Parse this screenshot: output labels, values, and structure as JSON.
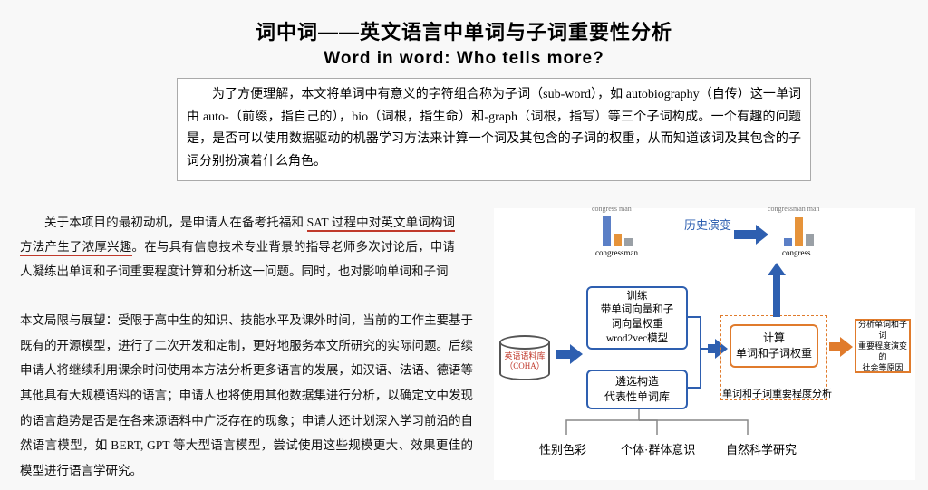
{
  "title": {
    "cn": "词中词——英文语言中单词与子词重要性分析",
    "en": "Word in word: Who tells more?"
  },
  "intro": {
    "text": "为了方便理解，本文将单词中有意义的字符组合称为子词（sub-word），如 autobiography（自传）这一单词由 auto-（前缀，指自己的），bio（词根，指生命）和-graph（词根，指写）等三个子词构成。一个有趣的问题是，是否可以使用数据驱动的机器学习方法来计算一个词及其包含的子词的权重，从而知道该词及其包含的子词分别扮演着什么角色。"
  },
  "mid": {
    "pre": "关于本项目的最初动机，是申请人在备考托福和 ",
    "underlined": "SAT 过程中对英文单词构词方法产生了浓厚兴趣",
    "post": "。在与具有信息技术专业背景的指导老师多次讨论后，申请人凝练出单词和子词重要程度计算和分析这一问题。同时，也对影响单词和子词"
  },
  "bottom": {
    "text": "本文局限与展望：受限于高中生的知识、技能水平及课外时间，当前的工作主要基于既有的开源模型，进行了二次开发和定制，更好地服务本文所研究的实际问题。后续申请人将继续利用课余时间使用本方法分析更多语言的发展，如汉语、法语、德语等其他具有大规模语料的语言；申请人也将使用其他数据集进行分析，以确定文中发现的语言趋势是否是在各来源语料中广泛存在的现象；申请人还计划深入学习前沿的自然语言模型，如 BERT, GPT 等大型语言模型，尝试使用这些规模更大、效果更佳的模型进行语言学研究。"
  },
  "diagram": {
    "colors": {
      "blue_border": "#2e5fb0",
      "blue_arrow": "#2e5fb0",
      "orange_border": "#e07b2c",
      "orange_arrow": "#e07b2c",
      "red_text": "#c0392b",
      "bar_blue": "#5b7fc6",
      "bar_orange": "#e6933a",
      "grey": "#666666"
    },
    "corpus": {
      "line1": "英语语料库",
      "line2": "（COHA）"
    },
    "train_box": {
      "l1": "训练",
      "l2": "带单词向量和子",
      "l3": "词向量权重",
      "l4": "wrod2vec模型"
    },
    "select_box": {
      "l1": "遴选构造",
      "l2": "代表性单词库"
    },
    "calc_box": {
      "l1": "计算",
      "l2": "单词和子词权重"
    },
    "analysis_box": {
      "l1": "分析单词和子词",
      "l2": "重要程度演变的",
      "l3": "社会等原因"
    },
    "sub_label": "单词和子词重要程度分析",
    "bottom_labels": {
      "a": "性别色彩",
      "b": "个体·群体意识",
      "c": "自然科学研究"
    },
    "chart": {
      "title": "历史演变",
      "left": {
        "bars": [
          {
            "h": 34,
            "c": "#5b7fc6"
          },
          {
            "h": 14,
            "c": "#e6933a"
          },
          {
            "h": 9,
            "c": "#9aa0a6"
          }
        ],
        "label": "congressman",
        "sub": "congress  man"
      },
      "right": {
        "bars": [
          {
            "h": 9,
            "c": "#5b7fc6"
          },
          {
            "h": 32,
            "c": "#e6933a"
          },
          {
            "h": 14,
            "c": "#9aa0a6"
          }
        ],
        "label": "congress",
        "sub": "congressman  man"
      }
    }
  }
}
